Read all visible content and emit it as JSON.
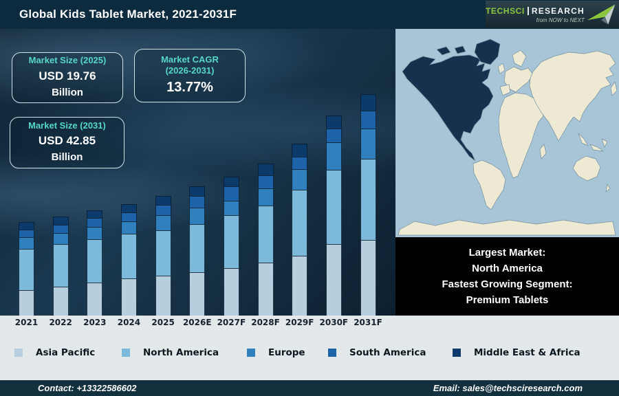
{
  "header": {
    "title": "Global Kids Tablet Market, 2021-2031F",
    "logo": {
      "brand": "TechSci",
      "brand2": "Research",
      "tagline": "from NOW to NEXT"
    }
  },
  "cards": [
    {
      "title": "Market Size (2025)",
      "value": "USD 19.76",
      "unit": "Billion"
    },
    {
      "title": "Market CAGR",
      "title2": "(2026-2031)",
      "value": "13.77%"
    },
    {
      "title": "Market Size (2031)",
      "value": "USD 42.85",
      "unit": "Billion"
    }
  ],
  "chart_data": {
    "type": "bar",
    "stacked": true,
    "title": "Global Kids Tablet Market, 2021-2031F",
    "unit": "USD Billion",
    "values_estimated_from_bar_heights": true,
    "categories": [
      "2021",
      "2022",
      "2023",
      "2024",
      "2025",
      "2026E",
      "2027F",
      "2028F",
      "2029F",
      "2030F",
      "2031F"
    ],
    "series": [
      {
        "name": "Asia Pacific",
        "color": "#b6cedd",
        "values": [
          3.8,
          4.4,
          5.2,
          6.0,
          6.6,
          7.4,
          8.2,
          9.4,
          11.0,
          13.5,
          14.6
        ]
      },
      {
        "name": "North America",
        "color": "#7db9da",
        "values": [
          6.1,
          6.5,
          6.8,
          7.2,
          7.5,
          8.2,
          9.2,
          10.2,
          12.1,
          14.1,
          15.7
        ]
      },
      {
        "name": "Europe",
        "color": "#2f80bd",
        "values": [
          1.8,
          1.7,
          1.9,
          2.0,
          2.5,
          2.7,
          2.6,
          3.1,
          3.8,
          5.2,
          5.8
        ]
      },
      {
        "name": "South America",
        "color": "#1c63a9",
        "values": [
          1.1,
          1.3,
          1.4,
          1.4,
          1.7,
          2.0,
          2.5,
          2.3,
          2.3,
          2.6,
          3.4
        ]
      },
      {
        "name": "Middle East & Africa",
        "color": "#0b3a6b",
        "values": [
          1.1,
          1.2,
          1.2,
          1.4,
          1.5,
          1.7,
          1.7,
          2.0,
          2.3,
          2.6,
          3.3
        ]
      }
    ],
    "totals_estimated": [
      13.9,
      15.1,
      16.5,
      18.0,
      19.8,
      22.0,
      24.2,
      27.0,
      31.5,
      38.0,
      42.8
    ],
    "stated_anchors": {
      "market_size_2025": "USD 19.76 Billion",
      "market_size_2031": "USD 42.85 Billion",
      "cagr_2026_2031": "13.77%"
    },
    "xlabel": "",
    "ylabel": "",
    "gridlines": false,
    "legend_position": "bottom"
  },
  "map": {
    "highlighted_region": "North America",
    "highlight_color": "#15314d",
    "land_color": "#ede9d2",
    "ocean_color": "#a8c5d7"
  },
  "callout": {
    "lines": [
      "Largest Market:",
      "North America",
      "Fastest Growing Segment:",
      "Premium Tablets"
    ]
  },
  "footer": {
    "contact": "Contact: +13322586602",
    "email": "Email: sales@techsciresearch.com"
  }
}
